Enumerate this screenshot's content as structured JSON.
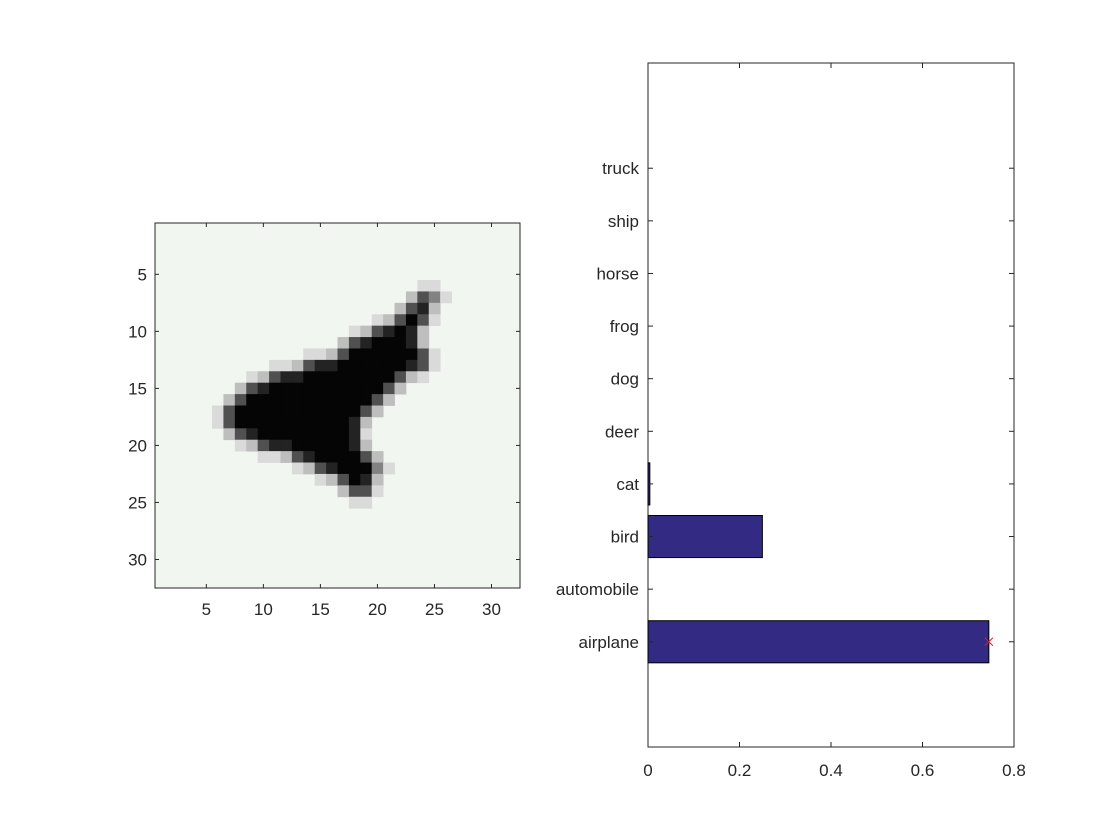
{
  "chart_data": [
    {
      "type": "heatmap",
      "description_kind": "image",
      "xlim": [
        0.5,
        32.5
      ],
      "ylim": [
        0.5,
        32.5
      ],
      "y_reversed": true,
      "xticks": [
        "5",
        "10",
        "15",
        "20",
        "25",
        "30"
      ],
      "yticks": [
        "5",
        "10",
        "15",
        "20",
        "25",
        "30"
      ],
      "colormap": "gray",
      "background_color": "#f2f6f0",
      "dark_region_rows": [
        {
          "row": 7,
          "cols": [
            24,
            25
          ]
        },
        {
          "row": 8,
          "cols": [
            23,
            24
          ]
        },
        {
          "row": 9,
          "cols": [
            22,
            23,
            24
          ]
        },
        {
          "row": 10,
          "cols": [
            20,
            21,
            22,
            23
          ]
        },
        {
          "row": 11,
          "cols": [
            18,
            19,
            20,
            21,
            22,
            23
          ]
        },
        {
          "row": 12,
          "cols": [
            17,
            18,
            19,
            20,
            21,
            22,
            23,
            24
          ]
        },
        {
          "row": 13,
          "cols": [
            14,
            15,
            16,
            17,
            18,
            19,
            20,
            21,
            22,
            23,
            24
          ]
        },
        {
          "row": 14,
          "cols": [
            11,
            12,
            13,
            14,
            15,
            16,
            17,
            18,
            19,
            20,
            21,
            22
          ]
        },
        {
          "row": 15,
          "cols": [
            9,
            10,
            11,
            12,
            13,
            14,
            15,
            16,
            17,
            18,
            19,
            20,
            21
          ]
        },
        {
          "row": 16,
          "cols": [
            8,
            9,
            10,
            11,
            12,
            13,
            14,
            15,
            16,
            17,
            18,
            19,
            20
          ]
        },
        {
          "row": 17,
          "cols": [
            7,
            8,
            9,
            10,
            11,
            12,
            13,
            14,
            15,
            16,
            17,
            18,
            19
          ]
        },
        {
          "row": 18,
          "cols": [
            7,
            8,
            9,
            10,
            11,
            12,
            13,
            14,
            15,
            16,
            17,
            18
          ]
        },
        {
          "row": 19,
          "cols": [
            8,
            9,
            10,
            11,
            12,
            13,
            14,
            15,
            16,
            17,
            18
          ]
        },
        {
          "row": 20,
          "cols": [
            10,
            11,
            12,
            13,
            14,
            15,
            16,
            17,
            18
          ]
        },
        {
          "row": 21,
          "cols": [
            13,
            14,
            15,
            16,
            17,
            18,
            19
          ]
        },
        {
          "row": 22,
          "cols": [
            15,
            16,
            17,
            18,
            19,
            20
          ]
        },
        {
          "row": 23,
          "cols": [
            17,
            18,
            19
          ]
        },
        {
          "row": 24,
          "cols": [
            18,
            19
          ]
        }
      ]
    },
    {
      "type": "bar",
      "orientation": "horizontal",
      "categories": [
        "airplane",
        "automobile",
        "bird",
        "cat",
        "deer",
        "dog",
        "frog",
        "horse",
        "ship",
        "truck"
      ],
      "values": [
        0.745,
        0.0,
        0.25,
        0.004,
        0.0,
        0.0,
        0.0,
        0.0,
        0.0,
        0.0
      ],
      "xlim": [
        0,
        0.8
      ],
      "ylim": [
        -1,
        12
      ],
      "xticks": [
        "0",
        "0.2",
        "0.4",
        "0.6",
        "0.8"
      ],
      "bar_color": "#332a84",
      "marker": {
        "category": "airplane",
        "value": 0.745,
        "symbol": "x",
        "color": "#e02020"
      }
    }
  ]
}
